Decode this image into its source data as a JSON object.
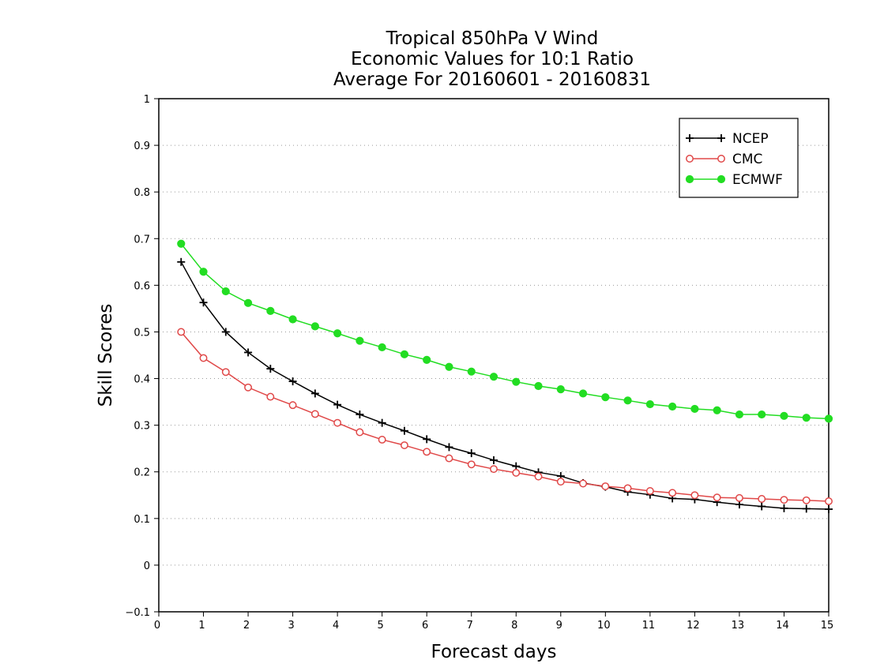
{
  "chart_data": {
    "type": "line",
    "title_lines": [
      "Tropical 850hPa V Wind",
      "Economic Values for 10:1 Ratio",
      "Average For 20160601 - 20160831"
    ],
    "xlabel": "Forecast days",
    "ylabel": "Skill Scores",
    "xlim": [
      0,
      15
    ],
    "ylim": [
      -0.1,
      1
    ],
    "x_ticks": [
      "0",
      "1",
      "2",
      "3",
      "4",
      "5",
      "6",
      "7",
      "8",
      "9",
      "10",
      "11",
      "12",
      "13",
      "14",
      "15"
    ],
    "y_ticks": [
      "−0.1",
      "0",
      "0.1",
      "0.2",
      "0.3",
      "0.4",
      "0.5",
      "0.6",
      "0.7",
      "0.8",
      "0.9",
      "1"
    ],
    "grid": "horizontal dotted",
    "legend_position": "top-right",
    "x": [
      0.5,
      1,
      1.5,
      2,
      2.5,
      3,
      3.5,
      4,
      4.5,
      5,
      5.5,
      6,
      6.5,
      7,
      7.5,
      8,
      8.5,
      9,
      9.5,
      10,
      10.5,
      11,
      11.5,
      12,
      12.5,
      13,
      13.5,
      14,
      14.5,
      15
    ],
    "series": [
      {
        "name": "NCEP",
        "color": "#000000",
        "marker": "plus",
        "values": [
          0.65,
          0.563,
          0.5,
          0.456,
          0.421,
          0.394,
          0.368,
          0.344,
          0.323,
          0.305,
          0.288,
          0.27,
          0.253,
          0.24,
          0.225,
          0.212,
          0.199,
          0.191,
          0.176,
          0.168,
          0.157,
          0.151,
          0.143,
          0.141,
          0.135,
          0.13,
          0.126,
          0.122,
          0.121,
          0.12
        ]
      },
      {
        "name": "CMC",
        "color": "#e04848",
        "marker": "open-circle",
        "values": [
          0.5,
          0.444,
          0.414,
          0.381,
          0.361,
          0.343,
          0.324,
          0.305,
          0.285,
          0.269,
          0.257,
          0.243,
          0.229,
          0.216,
          0.206,
          0.198,
          0.19,
          0.179,
          0.175,
          0.169,
          0.165,
          0.159,
          0.155,
          0.15,
          0.145,
          0.144,
          0.142,
          0.14,
          0.139,
          0.137
        ]
      },
      {
        "name": "ECMWF",
        "color": "#22dd22",
        "marker": "filled-circle",
        "values": [
          0.689,
          0.629,
          0.587,
          0.562,
          0.545,
          0.527,
          0.512,
          0.497,
          0.481,
          0.467,
          0.452,
          0.44,
          0.425,
          0.415,
          0.404,
          0.393,
          0.384,
          0.377,
          0.368,
          0.36,
          0.353,
          0.345,
          0.34,
          0.335,
          0.332,
          0.323,
          0.323,
          0.32,
          0.316,
          0.314
        ]
      }
    ]
  }
}
